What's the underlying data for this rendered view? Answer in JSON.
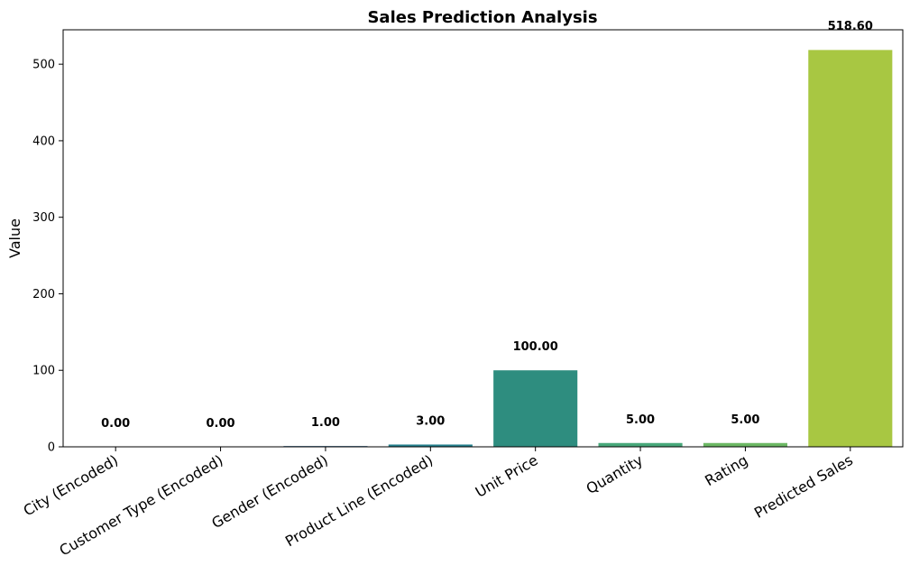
{
  "chart_data": {
    "type": "bar",
    "title": "Sales Prediction Analysis",
    "xlabel": "",
    "ylabel": "Value",
    "ylim": [
      0,
      545
    ],
    "yticks": [
      0,
      100,
      200,
      300,
      400,
      500
    ],
    "categories": [
      "City (Encoded)",
      "Customer Type (Encoded)",
      "Gender (Encoded)",
      "Product Line (Encoded)",
      "Unit Price",
      "Quantity",
      "Rating",
      "Predicted Sales"
    ],
    "values": [
      0.0,
      0.0,
      1.0,
      3.0,
      100.0,
      5.0,
      5.0,
      518.6
    ],
    "value_labels": [
      "0.00",
      "0.00",
      "1.00",
      "3.00",
      "100.00",
      "5.00",
      "5.00",
      "518.60"
    ],
    "colors": [
      "#46327e",
      "#3e4989",
      "#31688e",
      "#26828e",
      "#2e8d7f",
      "#48a87a",
      "#6cb864",
      "#a8c742"
    ],
    "grid": false,
    "legend": "none"
  }
}
